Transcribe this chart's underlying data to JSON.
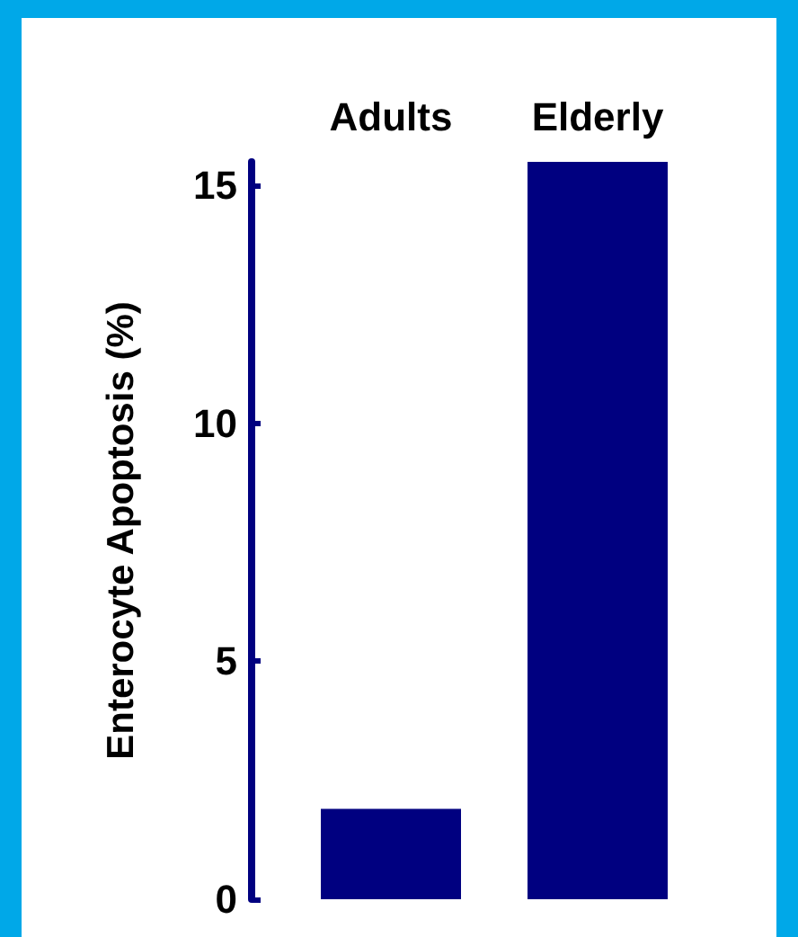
{
  "chart_data": {
    "type": "bar",
    "ylabel": "Enterocyte Apoptosis (%)",
    "categories": [
      "Adults",
      "Elderly"
    ],
    "values": [
      1.9,
      15.5
    ],
    "color": "#000080",
    "ylim": [
      0,
      15.5
    ],
    "yticks": [
      0,
      5,
      10,
      15
    ],
    "grid": false
  }
}
